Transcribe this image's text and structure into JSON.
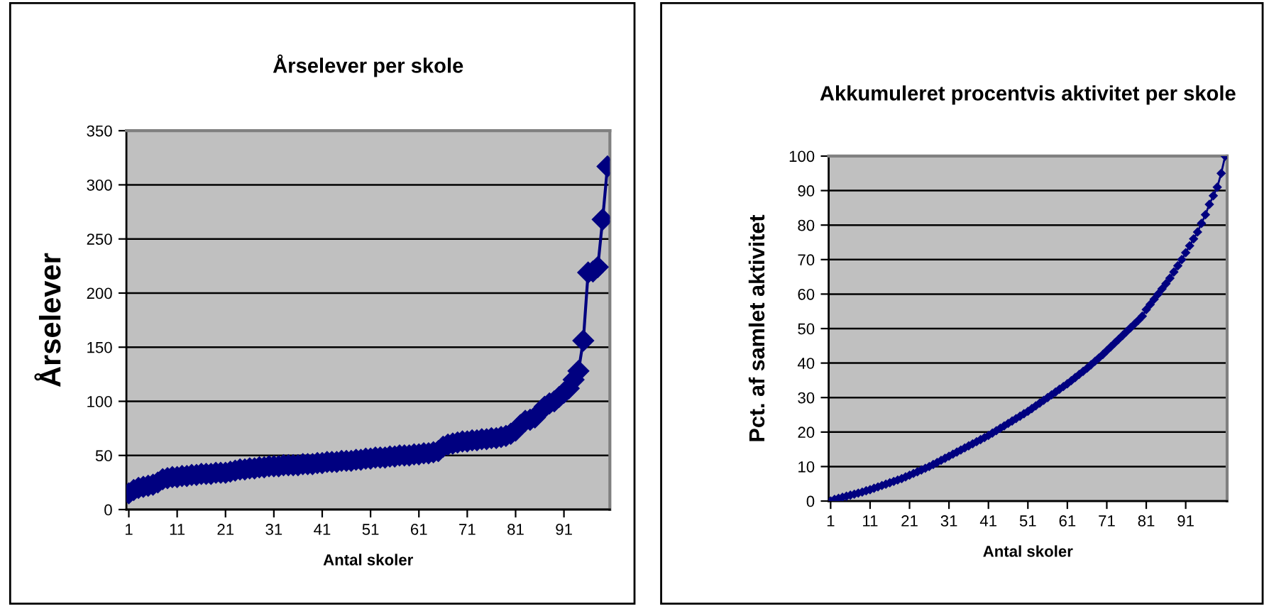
{
  "chart_data": [
    {
      "type": "line",
      "title": "Årselever per skole",
      "xlabel": "Antal skoler",
      "ylabel": "Årselever",
      "categories": [
        "1",
        null,
        null,
        null,
        null,
        null,
        null,
        null,
        null,
        null,
        "11",
        null,
        null,
        null,
        null,
        null,
        null,
        null,
        null,
        null,
        "21",
        null,
        null,
        null,
        null,
        null,
        null,
        null,
        null,
        null,
        "31",
        null,
        null,
        null,
        null,
        null,
        null,
        null,
        null,
        null,
        "41",
        null,
        null,
        null,
        null,
        null,
        null,
        null,
        null,
        null,
        "51",
        null,
        null,
        null,
        null,
        null,
        null,
        null,
        null,
        null,
        "61",
        null,
        null,
        null,
        null,
        null,
        null,
        null,
        null,
        null,
        "71",
        null,
        null,
        null,
        null,
        null,
        null,
        null,
        null,
        null,
        "81",
        null,
        null,
        null,
        null,
        null,
        null,
        null,
        null,
        null,
        "91",
        null,
        null,
        null,
        null,
        null,
        null,
        null,
        null,
        null
      ],
      "values": [
        15,
        18,
        20,
        21,
        22,
        23,
        25,
        28,
        29,
        30,
        30,
        31,
        31,
        32,
        32,
        33,
        33,
        33,
        34,
        34,
        34,
        35,
        36,
        37,
        37,
        38,
        38,
        39,
        39,
        40,
        40,
        40,
        41,
        41,
        41,
        41,
        42,
        42,
        42,
        43,
        43,
        44,
        44,
        44,
        45,
        45,
        45,
        46,
        46,
        47,
        47,
        48,
        48,
        48,
        49,
        49,
        50,
        50,
        50,
        51,
        51,
        52,
        52,
        53,
        54,
        58,
        60,
        61,
        62,
        63,
        63,
        64,
        64,
        65,
        65,
        66,
        66,
        67,
        68,
        70,
        73,
        78,
        82,
        83,
        85,
        90,
        95,
        98,
        100,
        104,
        108,
        112,
        120,
        128,
        156,
        219,
        220,
        224,
        268,
        317
      ],
      "color": "#000080",
      "marker": "diamond",
      "line_style": "solid",
      "grid": "y",
      "ylim": [
        0,
        350
      ],
      "yticks": [
        0,
        50,
        100,
        150,
        200,
        250,
        300,
        350
      ]
    },
    {
      "type": "line",
      "title": "Akkumuleret procentvis aktivitet per skole",
      "xlabel": "Antal skoler",
      "ylabel": "Pct. af samlet aktivitet",
      "categories": [
        "1",
        null,
        null,
        null,
        null,
        null,
        null,
        null,
        null,
        null,
        "11",
        null,
        null,
        null,
        null,
        null,
        null,
        null,
        null,
        null,
        "21",
        null,
        null,
        null,
        null,
        null,
        null,
        null,
        null,
        null,
        "31",
        null,
        null,
        null,
        null,
        null,
        null,
        null,
        null,
        null,
        "41",
        null,
        null,
        null,
        null,
        null,
        null,
        null,
        null,
        null,
        "51",
        null,
        null,
        null,
        null,
        null,
        null,
        null,
        null,
        null,
        "61",
        null,
        null,
        null,
        null,
        null,
        null,
        null,
        null,
        null,
        "71",
        null,
        null,
        null,
        null,
        null,
        null,
        null,
        null,
        null,
        "81",
        null,
        null,
        null,
        null,
        null,
        null,
        null,
        null,
        null,
        "91",
        null,
        null,
        null,
        null,
        null,
        null,
        null,
        null,
        null,
        null
      ],
      "values": [
        0,
        0.5,
        0.8,
        1.1,
        1.4,
        1.7,
        2.0,
        2.3,
        2.6,
        3.0,
        3.3,
        3.7,
        4.1,
        4.5,
        4.9,
        5.3,
        5.7,
        6.1,
        6.5,
        7.0,
        7.5,
        8.0,
        8.5,
        9.0,
        9.5,
        10.0,
        10.6,
        11.2,
        11.8,
        12.4,
        13.0,
        13.6,
        14.2,
        14.8,
        15.4,
        16.0,
        16.6,
        17.2,
        17.8,
        18.4,
        19.0,
        19.7,
        20.4,
        21.1,
        21.8,
        22.5,
        23.2,
        23.9,
        24.6,
        25.3,
        26.0,
        26.8,
        27.6,
        28.4,
        29.2,
        30.0,
        30.8,
        31.6,
        32.4,
        33.2,
        34.0,
        34.9,
        35.8,
        36.7,
        37.6,
        38.5,
        39.5,
        40.5,
        41.5,
        42.5,
        43.6,
        44.7,
        45.8,
        46.9,
        48.0,
        49.1,
        50.2,
        51.3,
        52.4,
        53.6,
        55.5,
        57.0,
        58.5,
        60.0,
        61.5,
        63.0,
        64.6,
        66.4,
        68.2,
        70.0,
        72.0,
        74.0,
        76.0,
        78.0,
        80.5,
        83.0,
        86.0,
        88.5,
        91.0,
        95.0,
        100
      ],
      "color": "#000080",
      "marker": "diamond",
      "line_style": "solid",
      "grid": "y",
      "ylim": [
        0,
        100
      ],
      "yticks": [
        0,
        10,
        20,
        30,
        40,
        50,
        60,
        70,
        80,
        90,
        100
      ]
    }
  ]
}
